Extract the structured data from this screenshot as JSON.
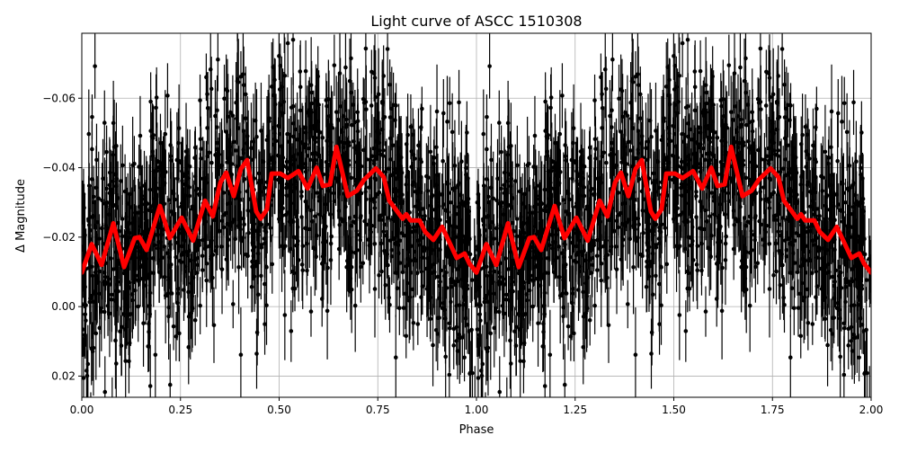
{
  "chart_data": {
    "type": "scatter",
    "title": "Light curve of ASCC 1510308",
    "xlabel": "Phase",
    "ylabel": "Δ Magnitude",
    "xlim": [
      0,
      2
    ],
    "ylim": [
      0.0261,
      -0.0787
    ],
    "y_inverted": true,
    "grid": true,
    "x_ticks": [
      "0.00",
      "0.25",
      "0.50",
      "0.75",
      "1.00",
      "1.25",
      "1.50",
      "1.75",
      "2.00"
    ],
    "y_ticks": [
      "−0.06",
      "−0.04",
      "−0.02",
      "0.00",
      "0.02"
    ],
    "y_tick_values": [
      -0.06,
      -0.04,
      -0.02,
      0.0,
      0.02
    ],
    "x_tick_values": [
      0,
      0.25,
      0.5,
      0.75,
      1.0,
      1.25,
      1.5,
      1.75,
      2.0
    ],
    "points_color": "#000000",
    "curve_color": "#ff0000",
    "curve_period": 1.0,
    "series": [
      {
        "kind": "smoothed-curve",
        "x": [
          0.0,
          0.025,
          0.05,
          0.08,
          0.107,
          0.134,
          0.146,
          0.164,
          0.198,
          0.223,
          0.253,
          0.282,
          0.312,
          0.332,
          0.351,
          0.366,
          0.385,
          0.403,
          0.419,
          0.442,
          0.453,
          0.469,
          0.481,
          0.503,
          0.522,
          0.549,
          0.572,
          0.595,
          0.611,
          0.629,
          0.645,
          0.674,
          0.697,
          0.715,
          0.745,
          0.765,
          0.779,
          0.813,
          0.822,
          0.833,
          0.856,
          0.87,
          0.891,
          0.913,
          0.95,
          0.97,
          0.982,
          1.0
        ],
        "y": [
          -0.0098,
          -0.018,
          -0.012,
          -0.024,
          -0.0114,
          -0.0197,
          -0.02,
          -0.0163,
          -0.029,
          -0.0197,
          -0.0256,
          -0.019,
          -0.0305,
          -0.026,
          -0.0357,
          -0.0386,
          -0.0318,
          -0.0396,
          -0.0422,
          -0.0274,
          -0.0253,
          -0.028,
          -0.0383,
          -0.0383,
          -0.037,
          -0.039,
          -0.034,
          -0.04,
          -0.0347,
          -0.0352,
          -0.046,
          -0.0318,
          -0.0334,
          -0.0365,
          -0.0398,
          -0.0373,
          -0.0305,
          -0.0253,
          -0.0266,
          -0.0248,
          -0.0248,
          -0.0215,
          -0.0192,
          -0.023,
          -0.014,
          -0.0153,
          -0.0124,
          -0.0098
        ]
      }
    ]
  }
}
